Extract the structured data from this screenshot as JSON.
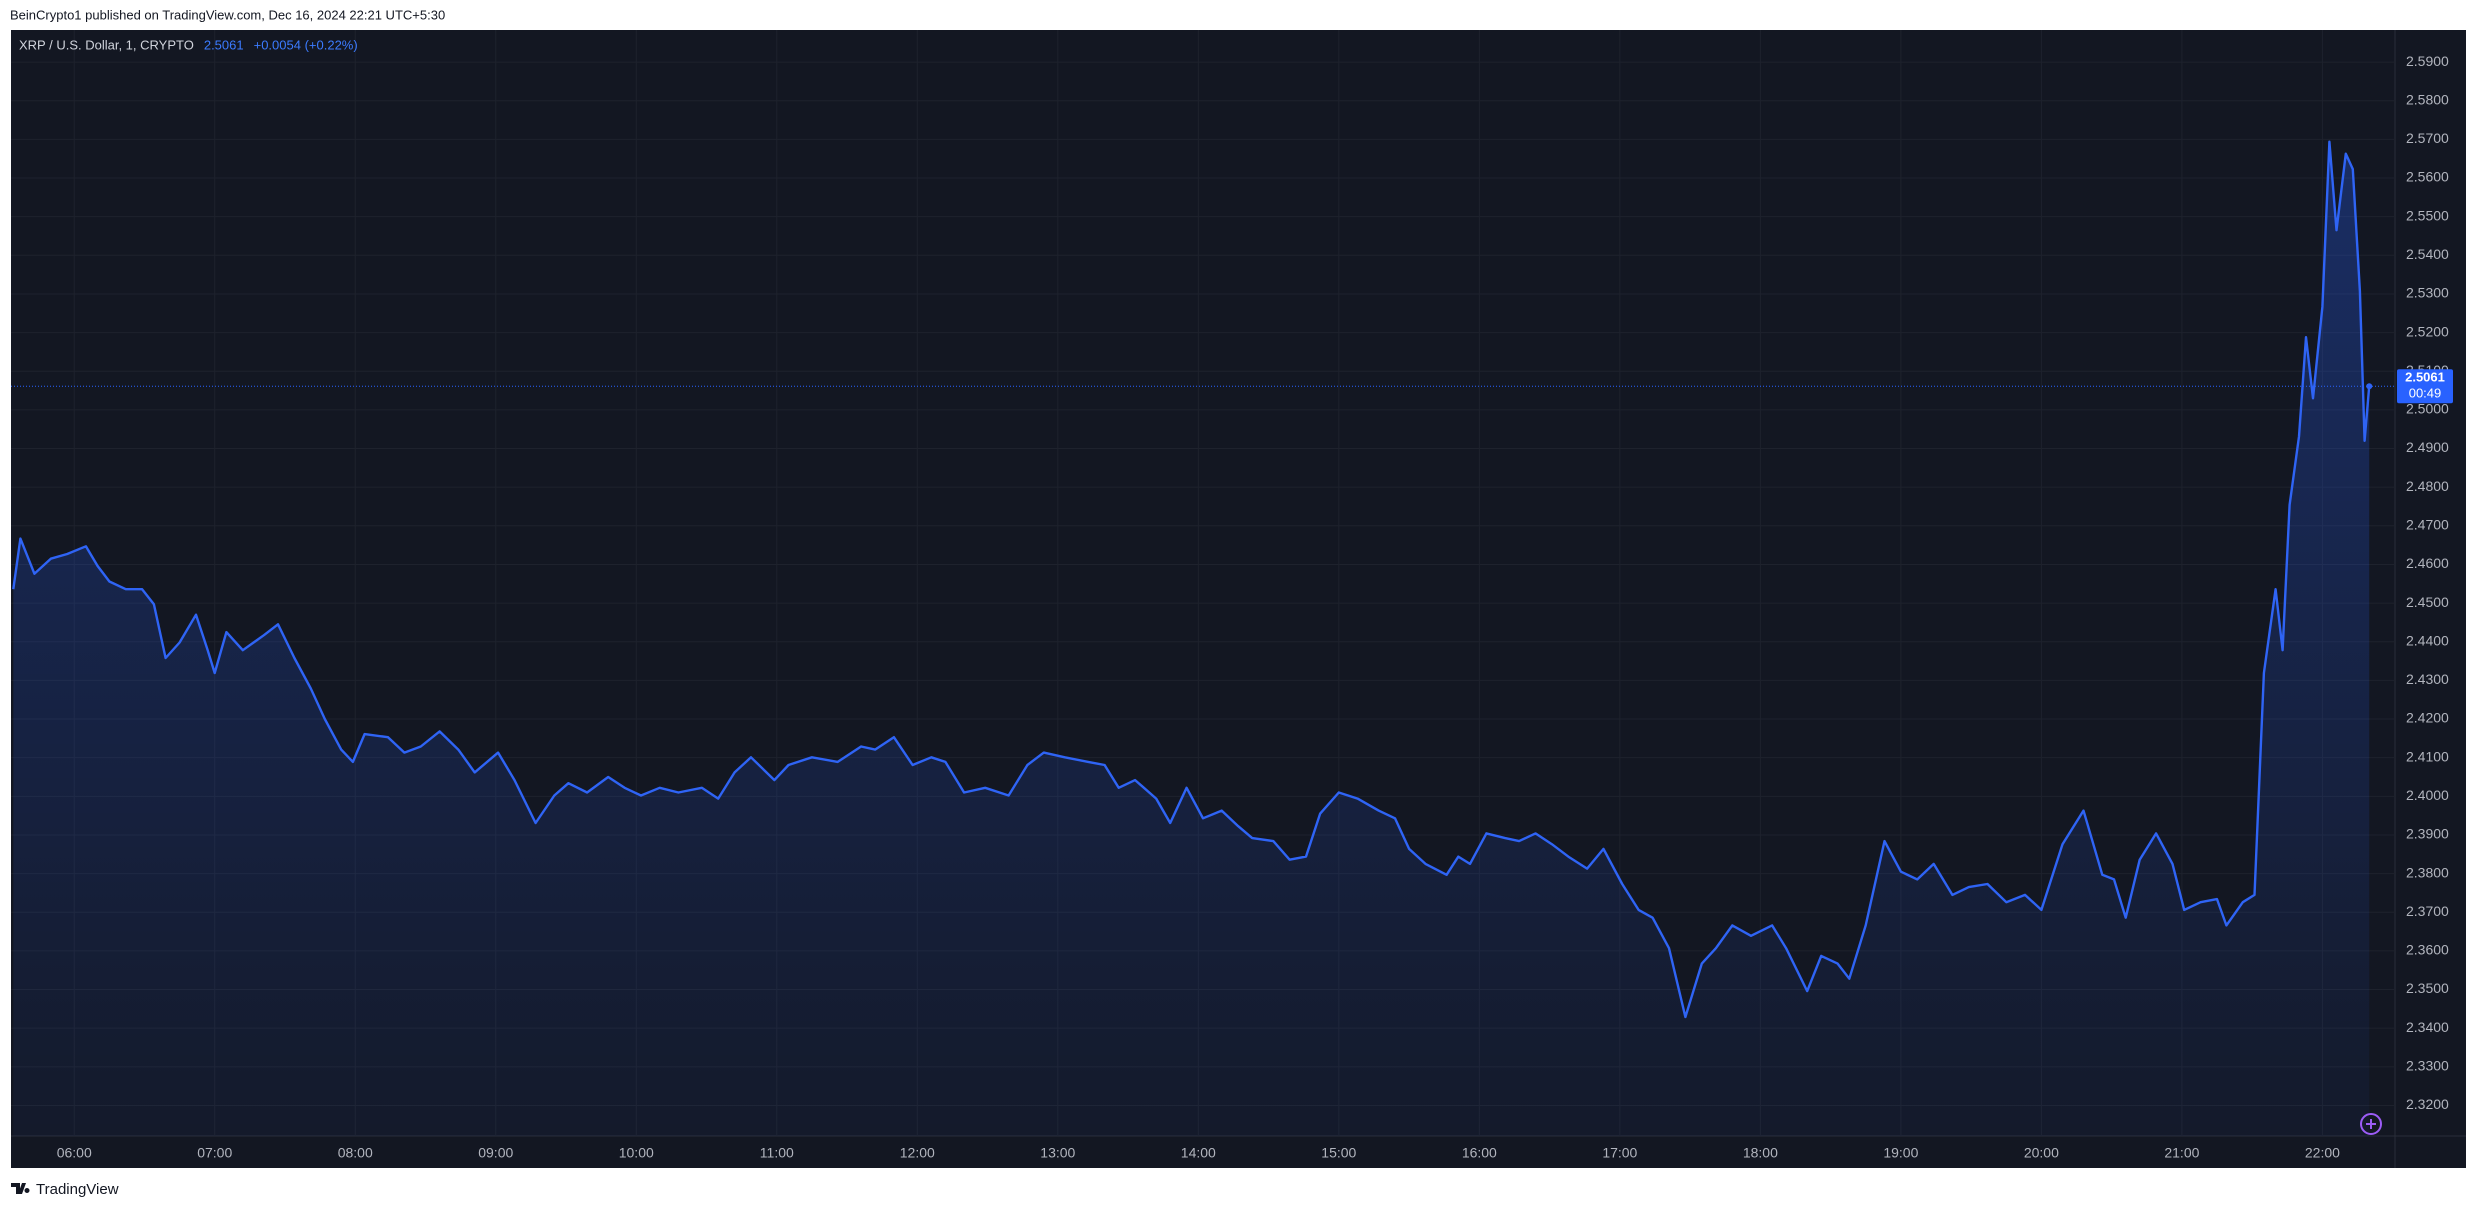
{
  "header": "BeinCrypto1 published on TradingView.com, Dec 16, 2024 22:21 UTC+5:30",
  "footer": "TradingView",
  "chart_data": {
    "type": "area",
    "symbol": "XRP / U.S. Dollar, 1, CRYPTO",
    "last_price": 2.5061,
    "change": "+0.0054 (+0.22%)",
    "countdown": "00:49",
    "grid": true,
    "x": [
      "05:34",
      "05:37",
      "05:43",
      "05:50",
      "05:57",
      "06:05",
      "06:10",
      "06:15",
      "06:22",
      "06:29",
      "06:34",
      "06:39",
      "06:45",
      "06:52",
      "06:57",
      "07:00",
      "07:05",
      "07:12",
      "07:21",
      "07:27",
      "07:34",
      "07:41",
      "07:47",
      "07:54",
      "07:59",
      "08:04",
      "08:14",
      "08:21",
      "08:28",
      "08:36",
      "08:44",
      "08:51",
      "09:01",
      "09:08",
      "09:17",
      "09:25",
      "09:31",
      "09:39",
      "09:48",
      "09:55",
      "10:02",
      "10:10",
      "10:18",
      "10:28",
      "10:35",
      "10:42",
      "10:49",
      "10:59",
      "11:05",
      "11:15",
      "11:26",
      "11:36",
      "11:42",
      "11:50",
      "11:58",
      "12:06",
      "12:12",
      "12:20",
      "12:29",
      "12:39",
      "12:47",
      "12:54",
      "13:03",
      "13:13",
      "13:20",
      "13:26",
      "13:33",
      "13:42",
      "13:48",
      "13:55",
      "14:02",
      "14:10",
      "14:17",
      "14:23",
      "14:32",
      "14:39",
      "14:46",
      "14:52",
      "15:00",
      "15:08",
      "15:17",
      "15:24",
      "15:30",
      "15:37",
      "15:46",
      "15:51",
      "15:56",
      "16:03",
      "16:11",
      "16:17",
      "16:24",
      "16:31",
      "16:38",
      "16:46",
      "16:53",
      "17:01",
      "17:08",
      "17:14",
      "17:21",
      "17:28",
      "17:35",
      "17:41",
      "17:48",
      "17:56",
      "18:05",
      "18:11",
      "18:20",
      "18:26",
      "18:33",
      "18:38",
      "18:45",
      "18:53",
      "19:00",
      "19:07",
      "19:14",
      "19:22",
      "19:29",
      "19:37",
      "19:45",
      "19:53",
      "20:00",
      "20:09",
      "20:18",
      "20:26",
      "20:31",
      "20:36",
      "20:42",
      "20:49",
      "20:56",
      "21:01",
      "21:08",
      "21:15",
      "21:19",
      "21:26",
      "21:31",
      "21:35",
      "21:40",
      "21:43",
      "21:46",
      "21:50",
      "21:53",
      "21:56",
      "22:00",
      "22:03",
      "22:06",
      "22:10",
      "22:13",
      "22:16",
      "22:18",
      "22:20"
    ],
    "series": [
      {
        "name": "XRP / U.S. Dollar, 1, CRYPTO",
        "color": "#2f64f5",
        "values": [
          2.4536,
          2.4667,
          2.4576,
          2.4615,
          2.4627,
          2.4647,
          2.4596,
          2.4556,
          2.4536,
          2.4536,
          2.4497,
          2.4358,
          2.4398,
          2.447,
          2.4378,
          2.4319,
          2.4425,
          2.4378,
          2.4417,
          2.4445,
          2.4358,
          2.4279,
          2.42,
          2.4121,
          2.4089,
          2.4161,
          2.4153,
          2.4113,
          2.4129,
          2.4168,
          2.4121,
          2.4062,
          2.4113,
          2.4042,
          2.3931,
          2.4002,
          2.4034,
          2.401,
          2.405,
          2.4022,
          2.4002,
          2.4022,
          2.401,
          2.4022,
          2.3994,
          2.4062,
          2.4101,
          2.4042,
          2.4081,
          2.4101,
          2.4089,
          2.4129,
          2.4121,
          2.4153,
          2.4081,
          2.4101,
          2.4089,
          2.401,
          2.4022,
          2.4002,
          2.4081,
          2.4113,
          2.4101,
          2.4089,
          2.4081,
          2.4022,
          2.4042,
          2.3994,
          2.3931,
          2.4022,
          2.3943,
          2.3963,
          2.3923,
          2.3892,
          2.3884,
          2.3836,
          2.3844,
          2.3955,
          2.401,
          2.3994,
          2.3963,
          2.3943,
          2.3864,
          2.3825,
          2.3797,
          2.3844,
          2.3825,
          2.3904,
          2.3892,
          2.3884,
          2.3904,
          2.3876,
          2.3844,
          2.3813,
          2.3864,
          2.3773,
          2.3706,
          2.3686,
          2.3607,
          2.3429,
          2.3567,
          2.3607,
          2.3666,
          2.3639,
          2.3666,
          2.3607,
          2.3496,
          2.3587,
          2.3567,
          2.3528,
          2.3666,
          2.3884,
          2.3805,
          2.3785,
          2.3825,
          2.3745,
          2.3765,
          2.3773,
          2.3726,
          2.3745,
          2.3706,
          2.3876,
          2.3963,
          2.3797,
          2.3785,
          2.3686,
          2.3836,
          2.3904,
          2.3825,
          2.3706,
          2.3726,
          2.3734,
          2.3666,
          2.3726,
          2.3745,
          2.4319,
          2.4536,
          2.4378,
          2.4754,
          2.4931,
          2.5188,
          2.503,
          2.5267,
          2.5694,
          2.5465,
          2.5663,
          2.5623,
          2.5307,
          2.492,
          2.5061
        ]
      }
    ],
    "xlim": [
      "05:33",
      "22:31"
    ],
    "xticks": [
      "06:00",
      "07:00",
      "08:00",
      "09:00",
      "10:00",
      "11:00",
      "12:00",
      "13:00",
      "14:00",
      "15:00",
      "16:00",
      "17:00",
      "18:00",
      "19:00",
      "20:00",
      "21:00",
      "22:00"
    ],
    "ylim": [
      2.3121,
      2.5983
    ],
    "yticks": [
      {
        "value": 2.32,
        "label": "2.3200"
      },
      {
        "value": 2.33,
        "label": "2.3300"
      },
      {
        "value": 2.34,
        "label": "2.3400"
      },
      {
        "value": 2.35,
        "label": "2.3500"
      },
      {
        "value": 2.36,
        "label": "2.3600"
      },
      {
        "value": 2.37,
        "label": "2.3700"
      },
      {
        "value": 2.38,
        "label": "2.3800"
      },
      {
        "value": 2.39,
        "label": "2.3900"
      },
      {
        "value": 2.4,
        "label": "2.4000"
      },
      {
        "value": 2.41,
        "label": "2.4100"
      },
      {
        "value": 2.42,
        "label": "2.4200"
      },
      {
        "value": 2.43,
        "label": "2.4300"
      },
      {
        "value": 2.44,
        "label": "2.4400"
      },
      {
        "value": 2.45,
        "label": "2.4500"
      },
      {
        "value": 2.46,
        "label": "2.4600"
      },
      {
        "value": 2.47,
        "label": "2.4700"
      },
      {
        "value": 2.48,
        "label": "2.4800"
      },
      {
        "value": 2.49,
        "label": "2.4900"
      },
      {
        "value": 2.5,
        "label": "2.5000"
      },
      {
        "value": 2.51,
        "label": "2.5100"
      },
      {
        "value": 2.52,
        "label": "2.5200"
      },
      {
        "value": 2.53,
        "label": "2.5300"
      },
      {
        "value": 2.54,
        "label": "2.5400"
      },
      {
        "value": 2.55,
        "label": "2.5500"
      },
      {
        "value": 2.56,
        "label": "2.5600"
      },
      {
        "value": 2.57,
        "label": "2.5700"
      },
      {
        "value": 2.58,
        "label": "2.5800"
      },
      {
        "value": 2.59,
        "label": "2.5900"
      }
    ]
  }
}
